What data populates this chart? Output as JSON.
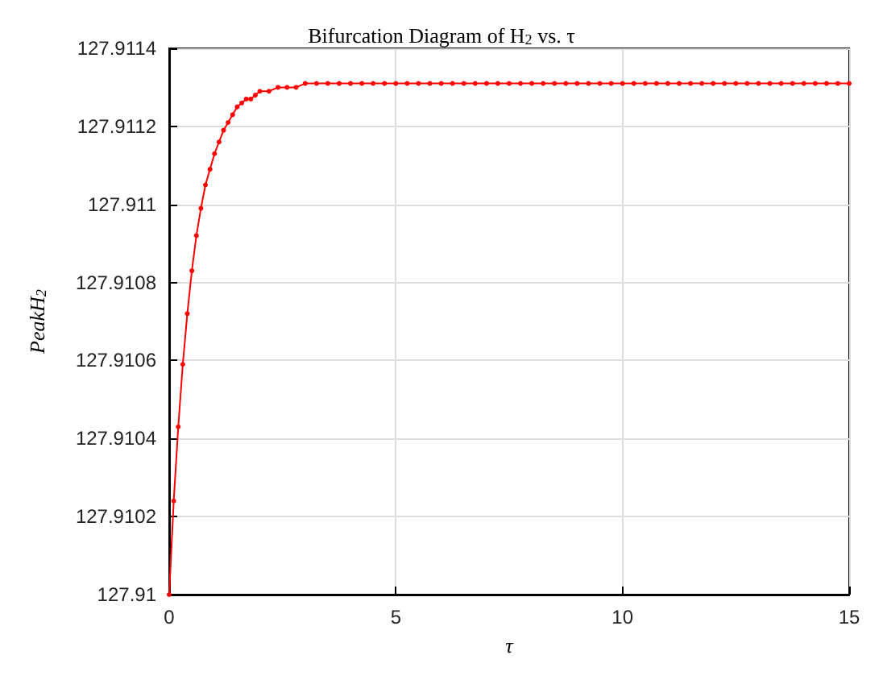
{
  "chart_data": {
    "type": "line",
    "title": "Bifurcation Diagram of H$_{2}$ vs. τ",
    "xlabel": "τ",
    "ylabel": "PeakH$_{2}$",
    "x": [
      0,
      0.1,
      0.2,
      0.3,
      0.4,
      0.5,
      0.6,
      0.7,
      0.8,
      0.9,
      1,
      1.1,
      1.2,
      1.3,
      1.4,
      1.5,
      1.6,
      1.7,
      1.8,
      1.9,
      2,
      2.2,
      2.4,
      2.6,
      2.8,
      3,
      3.25,
      3.5,
      3.75,
      4,
      4.25,
      4.5,
      4.75,
      5,
      5.25,
      5.5,
      5.75,
      6,
      6.25,
      6.5,
      6.75,
      7,
      7.25,
      7.5,
      7.75,
      8,
      8.25,
      8.5,
      8.75,
      9,
      9.25,
      9.5,
      9.75,
      10,
      10.25,
      10.5,
      10.75,
      11,
      11.25,
      11.5,
      11.75,
      12,
      12.25,
      12.5,
      12.75,
      13,
      13.25,
      13.5,
      13.75,
      14,
      14.25,
      14.5,
      14.75,
      15
    ],
    "series": [
      {
        "color": "#ff0000",
        "values": [
          127.91,
          127.91024,
          127.91043,
          127.91059,
          127.91072,
          127.91083,
          127.91092,
          127.91099,
          127.91105,
          127.91109,
          127.91113,
          127.91116,
          127.91119,
          127.91121,
          127.91123,
          127.91125,
          127.91126,
          127.91127,
          127.91127,
          127.91128,
          127.91129,
          127.91129,
          127.9113,
          127.9113,
          127.9113,
          127.91131,
          127.91131,
          127.91131,
          127.91131,
          127.91131,
          127.91131,
          127.91131,
          127.91131,
          127.91131,
          127.91131,
          127.91131,
          127.91131,
          127.91131,
          127.91131,
          127.91131,
          127.91131,
          127.91131,
          127.91131,
          127.91131,
          127.91131,
          127.91131,
          127.91131,
          127.91131,
          127.91131,
          127.91131,
          127.91131,
          127.91131,
          127.91131,
          127.91131,
          127.91131,
          127.91131,
          127.91131,
          127.91131,
          127.91131,
          127.91131,
          127.91131,
          127.91131,
          127.91131,
          127.91131,
          127.91131,
          127.91131,
          127.91131,
          127.91131,
          127.91131,
          127.91131,
          127.91131,
          127.91131,
          127.91131,
          127.91131
        ]
      }
    ],
    "xlim": [
      0,
      15
    ],
    "xticks": [
      0,
      5,
      10,
      15
    ],
    "ylim": [
      127.91,
      127.9114
    ],
    "yticks": [
      127.91,
      127.9102,
      127.9104,
      127.9106,
      127.9108,
      127.911,
      127.9112,
      127.9114
    ],
    "grid": true,
    "marker": "circle",
    "line_style": "solid"
  }
}
